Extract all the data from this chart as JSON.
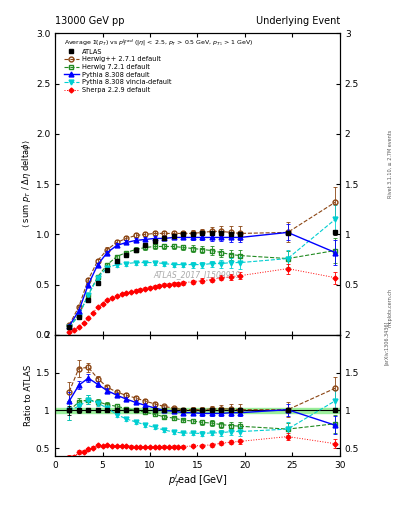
{
  "title_left": "13000 GeV pp",
  "title_right": "Underlying Event",
  "ylabel_main": "⟨ sum p_T / Δη deltaφ⟩",
  "ylabel_ratio": "Ratio to ATLAS",
  "xlabel": "p$_T^l$ead [GeV]",
  "annotation": "ATLAS_2017_I1509919",
  "rivet_text": "Rivet 3.1.10, ≥ 2.7M events",
  "arxiv_text": "[arXiv:1306.3436]",
  "mcplots_text": "mcplots.cern.ch",
  "ylim_main": [
    0,
    3.0
  ],
  "ylim_ratio": [
    0.4,
    2.0
  ],
  "xlim": [
    0,
    30
  ],
  "atlas_x": [
    1.5,
    2.5,
    3.5,
    4.5,
    5.5,
    6.5,
    7.5,
    8.5,
    9.5,
    10.5,
    11.5,
    12.5,
    13.5,
    14.5,
    15.5,
    16.5,
    17.5,
    18.5,
    19.5,
    24.5,
    29.5
  ],
  "atlas_y": [
    0.08,
    0.18,
    0.35,
    0.52,
    0.65,
    0.74,
    0.8,
    0.85,
    0.89,
    0.93,
    0.96,
    0.98,
    1.0,
    1.0,
    1.01,
    1.01,
    1.01,
    1.0,
    1.0,
    1.01,
    1.02
  ],
  "atlas_yerr": [
    0.005,
    0.006,
    0.007,
    0.008,
    0.009,
    0.009,
    0.01,
    0.01,
    0.01,
    0.011,
    0.011,
    0.012,
    0.012,
    0.013,
    0.013,
    0.013,
    0.014,
    0.015,
    0.015,
    0.02,
    0.025
  ],
  "herwig1_x": [
    1.5,
    2.5,
    3.5,
    4.5,
    5.5,
    6.5,
    7.5,
    8.5,
    9.5,
    10.5,
    11.5,
    12.5,
    13.5,
    14.5,
    15.5,
    16.5,
    17.5,
    18.5,
    19.5,
    24.5,
    29.5
  ],
  "herwig1_y": [
    0.1,
    0.28,
    0.55,
    0.74,
    0.85,
    0.92,
    0.96,
    0.99,
    1.0,
    1.01,
    1.01,
    1.01,
    1.01,
    1.01,
    1.02,
    1.03,
    1.03,
    1.02,
    1.01,
    1.02,
    1.32
  ],
  "herwig1_yerr": [
    0.01,
    0.02,
    0.02,
    0.02,
    0.02,
    0.02,
    0.02,
    0.02,
    0.02,
    0.02,
    0.02,
    0.02,
    0.02,
    0.03,
    0.03,
    0.04,
    0.05,
    0.06,
    0.07,
    0.1,
    0.15
  ],
  "herwig2_x": [
    1.5,
    2.5,
    3.5,
    4.5,
    5.5,
    6.5,
    7.5,
    8.5,
    9.5,
    10.5,
    11.5,
    12.5,
    13.5,
    14.5,
    15.5,
    16.5,
    17.5,
    18.5,
    19.5,
    24.5,
    29.5
  ],
  "herwig2_y": [
    0.08,
    0.2,
    0.4,
    0.58,
    0.7,
    0.78,
    0.82,
    0.85,
    0.87,
    0.88,
    0.88,
    0.88,
    0.87,
    0.86,
    0.85,
    0.84,
    0.82,
    0.8,
    0.79,
    0.76,
    0.84
  ],
  "herwig2_yerr": [
    0.01,
    0.01,
    0.02,
    0.02,
    0.02,
    0.02,
    0.02,
    0.02,
    0.02,
    0.02,
    0.02,
    0.02,
    0.02,
    0.03,
    0.03,
    0.04,
    0.04,
    0.05,
    0.06,
    0.08,
    0.12
  ],
  "pythia1_x": [
    1.5,
    2.5,
    3.5,
    4.5,
    5.5,
    6.5,
    7.5,
    8.5,
    9.5,
    10.5,
    11.5,
    12.5,
    13.5,
    14.5,
    15.5,
    16.5,
    17.5,
    18.5,
    19.5,
    24.5,
    29.5
  ],
  "pythia1_y": [
    0.09,
    0.24,
    0.5,
    0.7,
    0.82,
    0.89,
    0.92,
    0.94,
    0.95,
    0.96,
    0.96,
    0.97,
    0.97,
    0.97,
    0.97,
    0.97,
    0.97,
    0.97,
    0.97,
    1.02,
    0.82
  ],
  "pythia1_yerr": [
    0.01,
    0.01,
    0.02,
    0.02,
    0.02,
    0.02,
    0.02,
    0.02,
    0.02,
    0.02,
    0.02,
    0.02,
    0.02,
    0.03,
    0.03,
    0.04,
    0.04,
    0.05,
    0.05,
    0.08,
    0.12
  ],
  "pythia2_x": [
    1.5,
    2.5,
    3.5,
    4.5,
    5.5,
    6.5,
    7.5,
    8.5,
    9.5,
    10.5,
    11.5,
    12.5,
    13.5,
    14.5,
    15.5,
    16.5,
    17.5,
    18.5,
    19.5,
    24.5,
    29.5
  ],
  "pythia2_y": [
    0.08,
    0.19,
    0.4,
    0.57,
    0.67,
    0.7,
    0.71,
    0.72,
    0.72,
    0.72,
    0.71,
    0.7,
    0.7,
    0.7,
    0.7,
    0.71,
    0.71,
    0.72,
    0.72,
    0.76,
    1.15
  ],
  "pythia2_yerr": [
    0.01,
    0.01,
    0.02,
    0.02,
    0.02,
    0.02,
    0.02,
    0.02,
    0.02,
    0.02,
    0.02,
    0.02,
    0.02,
    0.03,
    0.03,
    0.03,
    0.04,
    0.05,
    0.06,
    0.09,
    0.14
  ],
  "sherpa_x": [
    1.5,
    2.0,
    2.5,
    3.0,
    3.5,
    4.0,
    4.5,
    5.0,
    5.5,
    6.0,
    6.5,
    7.0,
    7.5,
    8.0,
    8.5,
    9.0,
    9.5,
    10.0,
    10.5,
    11.0,
    11.5,
    12.0,
    12.5,
    13.0,
    13.5,
    14.5,
    15.5,
    16.5,
    17.5,
    18.5,
    19.5,
    24.5,
    29.5
  ],
  "sherpa_y": [
    0.03,
    0.05,
    0.08,
    0.12,
    0.17,
    0.22,
    0.28,
    0.31,
    0.35,
    0.37,
    0.39,
    0.41,
    0.42,
    0.43,
    0.44,
    0.45,
    0.46,
    0.47,
    0.48,
    0.49,
    0.5,
    0.5,
    0.51,
    0.51,
    0.52,
    0.53,
    0.54,
    0.55,
    0.57,
    0.58,
    0.59,
    0.66,
    0.57
  ],
  "sherpa_yerr": [
    0.003,
    0.004,
    0.005,
    0.006,
    0.007,
    0.008,
    0.009,
    0.009,
    0.01,
    0.01,
    0.011,
    0.011,
    0.012,
    0.012,
    0.013,
    0.013,
    0.014,
    0.014,
    0.015,
    0.015,
    0.016,
    0.016,
    0.017,
    0.018,
    0.018,
    0.02,
    0.022,
    0.025,
    0.028,
    0.03,
    0.032,
    0.05,
    0.06
  ],
  "color_atlas": "#000000",
  "color_herwig1": "#8B4513",
  "color_herwig2": "#228B22",
  "color_pythia1": "#0000FF",
  "color_pythia2": "#00CED1",
  "color_sherpa": "#FF0000",
  "color_band": "#90EE90"
}
